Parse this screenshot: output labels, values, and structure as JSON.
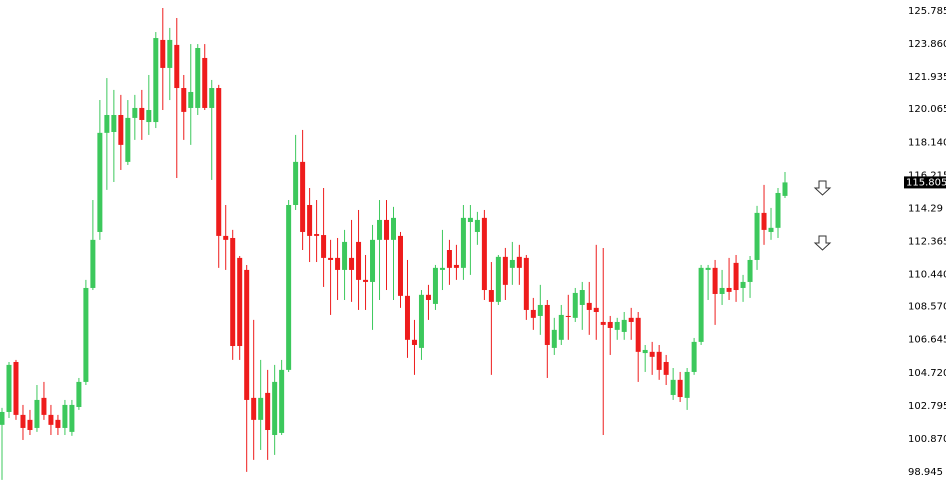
{
  "chart_data": {
    "type": "candlestick",
    "up_color": "#3cc85c",
    "down_color": "#ee1c1c",
    "ylim": [
      97.606,
      126.425
    ],
    "yticks": [
      125.785,
      {
        "value": 123.86,
        "label": "123.860"
      },
      121.935,
      120.065,
      {
        "value": 118.14,
        "label": "118.140"
      },
      116.215,
      114.29,
      112.365,
      {
        "value": 110.44,
        "label": "110.440"
      },
      {
        "value": 108.57,
        "label": "108.570"
      },
      106.645,
      {
        "value": 104.72,
        "label": "104.720"
      },
      102.795,
      {
        "value": 100.87,
        "label": "100.870"
      },
      98.945
    ],
    "current_price": 115.805,
    "open": [
      101.69,
      102.44,
      105.35,
      102.27,
      101.98,
      101.51,
      103.26,
      102.27,
      101.98,
      101.51,
      101.28,
      102.73,
      104.19,
      109.66,
      112.92,
      118.69,
      118.74,
      119.73,
      117.0,
      119.56,
      120.14,
      119.32,
      119.32,
      124.1,
      122.47,
      123.81,
      121.3,
      120.14,
      120.14,
      123.05,
      120.14,
      121.3,
      112.69,
      112.57,
      111.41,
      110.71,
      103.26,
      101.98,
      103.55,
      101.1,
      101.22,
      104.89,
      114.49,
      117.0,
      114.49,
      112.8,
      112.74,
      111.41,
      111.41,
      110.71,
      111.41,
      112.34,
      110.13,
      110.01,
      112.46,
      113.62,
      112.46,
      112.69,
      109.2,
      106.64,
      106.17,
      109.26,
      108.73,
      110.71,
      111.87,
      111.0,
      110.83,
      113.5,
      112.92,
      113.74,
      109.54,
      108.85,
      111.47,
      110.83,
      111.47,
      111.41,
      108.38,
      108.03,
      108.67,
      106.17,
      106.64,
      108.03,
      107.92,
      108.67,
      108.79,
      108.5,
      107.68,
      107.68,
      107.22,
      107.1,
      107.92,
      107.92,
      105.87,
      105.94,
      105.94,
      105.35,
      103.43,
      104.31,
      103.26,
      104.77,
      106.52,
      110.71,
      110.83,
      109.31,
      109.66,
      111.12,
      109.66,
      110.01,
      111.29,
      114.03,
      112.92,
      113.16,
      115.02
    ],
    "high": [
      102.68,
      105.35,
      105.47,
      102.85,
      102.56,
      104.01,
      104.19,
      102.85,
      102.27,
      103.14,
      103.14,
      104.42,
      110.13,
      114.78,
      120.6,
      121.88,
      121.19,
      120.9,
      120.6,
      120.9,
      121.19,
      122.06,
      124.56,
      125.96,
      124.8,
      125.38,
      122.06,
      123.86,
      123.86,
      123.86,
      121.77,
      121.48,
      114.49,
      113.04,
      111.52,
      111.0,
      107.8,
      105.47,
      104.89,
      105.18,
      105.47,
      114.78,
      118.57,
      118.86,
      115.48,
      114.78,
      115.48,
      112.46,
      112.57,
      113.04,
      113.62,
      114.2,
      111.58,
      113.33,
      114.78,
      114.78,
      114.38,
      112.92,
      111.29,
      107.8,
      109.54,
      109.84,
      111.0,
      113.04,
      112.46,
      112.17,
      114.49,
      114.49,
      114.09,
      114.2,
      111.17,
      111.58,
      111.99,
      112.34,
      112.17,
      111.58,
      109.08,
      109.84,
      108.96,
      107.92,
      108.67,
      109.26,
      109.66,
      110.01,
      110.01,
      112.17,
      111.99,
      108.03,
      107.92,
      108.26,
      108.5,
      108.26,
      106.34,
      106.52,
      106.34,
      105.76,
      105.0,
      104.77,
      105.0,
      106.75,
      111.0,
      111.0,
      111.29,
      110.71,
      111.41,
      111.58,
      110.42,
      111.52,
      114.44,
      115.66,
      114.32,
      115.48,
      116.41
    ],
    "low": [
      98.49,
      102.09,
      101.98,
      100.81,
      101.1,
      101.28,
      101.98,
      101.1,
      101.1,
      101.1,
      101.05,
      102.56,
      104.01,
      109.54,
      112.46,
      115.37,
      115.83,
      116.53,
      116.82,
      118.28,
      118.28,
      118.57,
      118.97,
      120.02,
      120.6,
      116.06,
      118.28,
      117.99,
      119.73,
      120.02,
      115.95,
      110.83,
      110.71,
      105.47,
      105.47,
      98.95,
      99.65,
      100.23,
      99.65,
      99.94,
      101.1,
      104.77,
      114.2,
      111.87,
      111.17,
      111.17,
      109.72,
      108.09,
      108.96,
      108.96,
      108.85,
      108.38,
      108.38,
      107.22,
      108.96,
      109.54,
      108.96,
      108.5,
      105.59,
      104.6,
      105.47,
      107.8,
      108.38,
      109.54,
      109.84,
      110.13,
      110.13,
      110.42,
      112.17,
      108.96,
      104.6,
      108.67,
      108.96,
      109.84,
      109.84,
      107.8,
      107.22,
      106.93,
      104.42,
      105.76,
      106.34,
      106.64,
      107.68,
      107.22,
      106.93,
      106.64,
      101.1,
      105.76,
      106.64,
      106.64,
      106.64,
      104.19,
      104.77,
      104.6,
      104.31,
      104.01,
      103.14,
      103.02,
      102.56,
      104.6,
      106.34,
      108.96,
      107.51,
      108.67,
      108.96,
      108.85,
      108.85,
      109.08,
      110.71,
      112.17,
      112.46,
      112.57,
      114.9
    ],
    "close": [
      102.44,
      105.18,
      102.27,
      101.51,
      101.39,
      103.14,
      102.27,
      101.69,
      101.51,
      102.85,
      102.85,
      104.19,
      109.66,
      112.46,
      118.69,
      119.73,
      119.73,
      117.99,
      119.56,
      120.14,
      119.44,
      120.02,
      124.21,
      122.47,
      124.1,
      121.3,
      119.91,
      121.07,
      123.63,
      120.14,
      121.3,
      112.69,
      112.46,
      106.28,
      106.28,
      103.14,
      101.98,
      103.26,
      101.39,
      104.19,
      104.89,
      114.49,
      117.0,
      112.92,
      112.69,
      112.69,
      111.41,
      111.29,
      110.71,
      112.34,
      110.71,
      110.13,
      110.01,
      112.46,
      113.62,
      112.46,
      113.74,
      109.2,
      106.64,
      106.34,
      109.26,
      108.96,
      110.83,
      110.83,
      110.83,
      110.83,
      113.74,
      113.74,
      113.62,
      109.54,
      108.85,
      111.47,
      109.84,
      111.29,
      110.83,
      108.38,
      107.92,
      108.67,
      106.34,
      107.22,
      108.09,
      107.97,
      109.37,
      109.54,
      108.38,
      108.26,
      107.51,
      107.33,
      107.68,
      107.8,
      107.68,
      105.94,
      106.05,
      105.65,
      104.89,
      104.6,
      104.31,
      103.31,
      104.77,
      106.52,
      110.83,
      110.83,
      109.31,
      109.66,
      109.43,
      109.54,
      110.01,
      111.29,
      114.03,
      113.04,
      113.16,
      115.19,
      115.805
    ]
  }
}
